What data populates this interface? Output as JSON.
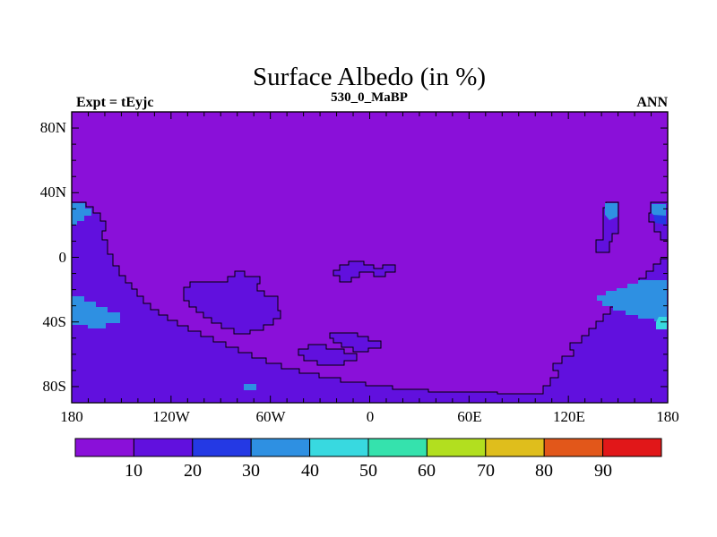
{
  "header": {
    "title": "Surface Albedo (in %)",
    "subtitle": "530_0_MaBP",
    "experiment": "Expt = tEyjc",
    "season": "ANN"
  },
  "axes": {
    "y_labels": [
      "80N",
      "40N",
      "0",
      "40S",
      "80S"
    ],
    "x_labels": [
      "180",
      "120W",
      "60W",
      "0",
      "60E",
      "120E",
      "180"
    ]
  },
  "colorbar": {
    "labels": [
      "10",
      "20",
      "30",
      "40",
      "50",
      "60",
      "70",
      "80",
      "90"
    ],
    "colors": [
      "#8a10d9",
      "#6110de",
      "#2439e4",
      "#2e90e2",
      "#38d9e0",
      "#35e2ad",
      "#b2df1f",
      "#dfbe1c",
      "#e2571a",
      "#e11719"
    ]
  },
  "map": {
    "colors": {
      "ocean": "#8a10d9",
      "land": "#6110de",
      "patch_blue": "#2439e4",
      "patch_lightblue": "#2e90e2",
      "patch_cyan": "#38d9e0"
    }
  },
  "chart_data": {
    "type": "heatmap",
    "subtype": "filled-contour world map, equirectangular, stepped model grid",
    "title": "Surface Albedo (in %)",
    "subtitle": "530_0_MaBP",
    "annotations": [
      "Expt = tEyjc",
      "ANN"
    ],
    "xlabel_ticks": [
      "180",
      "120W",
      "60W",
      "0",
      "60E",
      "120E",
      "180"
    ],
    "ylabel_ticks": [
      "80N",
      "40N",
      "0",
      "40S",
      "80S"
    ],
    "lon_range": [
      -180,
      180
    ],
    "lat_range": [
      -90,
      90
    ],
    "minor_tick_interval_deg": 10,
    "levels_percent": [
      0,
      10,
      20,
      30,
      40,
      50,
      60,
      70,
      80,
      90,
      100
    ],
    "level_colors": [
      "#8a10d9",
      "#6110de",
      "#2439e4",
      "#2e90e2",
      "#38d9e0",
      "#35e2ad",
      "#b2df1f",
      "#dfbe1c",
      "#e2571a",
      "#e11719"
    ],
    "legend_position": "bottom horizontal colorbar",
    "regions": [
      {
        "name": "global ocean",
        "albedo_bin": "0-10"
      },
      {
        "name": "western supercontinent margin along 180W from ~35N to south pole, widening southward across the whole southern high latitudes",
        "albedo_bin": "10-20"
      },
      {
        "name": "eastern landmass along 180E from ~30S joining southern continent",
        "albedo_bin": "10-20"
      },
      {
        "name": "mid-ocean island ~110-70W, 10-25S",
        "albedo_bin": "10-20"
      },
      {
        "name": "small island ~20W-0, 3-8S",
        "albedo_bin": "10-20"
      },
      {
        "name": "two small islands ~45-15W, 45-55S",
        "albedo_bin": "10-20"
      },
      {
        "name": "narrow island ~140-145E, 25-35N",
        "albedo_bin": "10-20"
      },
      {
        "name": "island at ~170-180E, 25-35N",
        "albedo_bin": "10-20"
      },
      {
        "name": "coastal patch near 180W, 25-35N",
        "albedo_bin": "30-40"
      },
      {
        "name": "coastal patch near 180W, 25-40S",
        "albedo_bin": "30-40"
      },
      {
        "name": "eastern interior patch ~145-180E, 30-45S",
        "albedo_bin": "30-40"
      },
      {
        "name": "caps of NE islands",
        "albedo_bin": "30-40 with 20-30 fringe"
      },
      {
        "name": "small cyan fringe at 180E, ~45S",
        "albedo_bin": "40-50"
      }
    ]
  }
}
